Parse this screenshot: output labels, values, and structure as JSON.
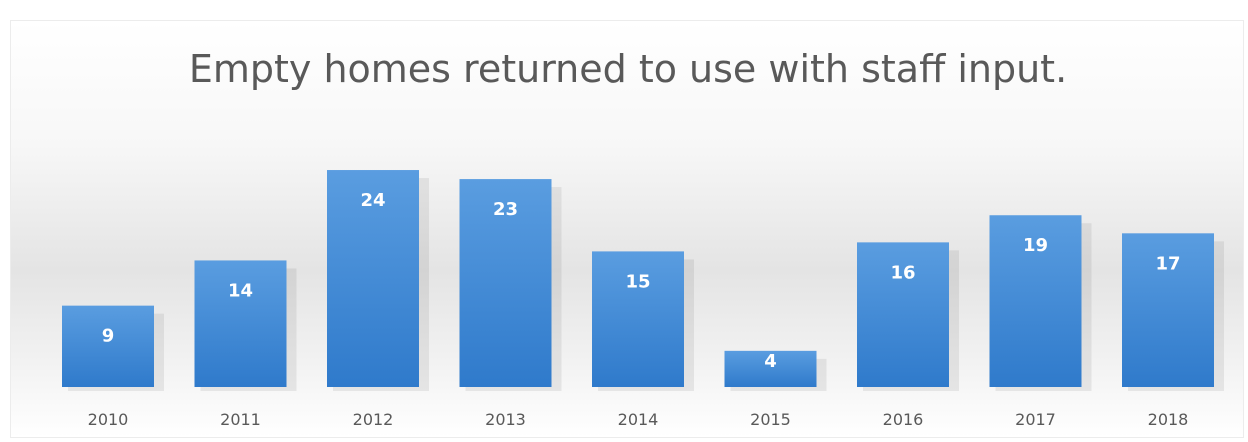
{
  "chart_data": {
    "type": "bar",
    "title": "Empty homes returned to use with staff input.",
    "categories": [
      "2010",
      "2011",
      "2012",
      "2013",
      "2014",
      "2015",
      "2016",
      "2017",
      "2018"
    ],
    "values": [
      9,
      14,
      24,
      23,
      15,
      4,
      16,
      19,
      17
    ],
    "ylim": [
      0,
      25
    ],
    "grid": false,
    "legend": "none",
    "data_labels": true,
    "bar_color": "#3b86d4"
  }
}
